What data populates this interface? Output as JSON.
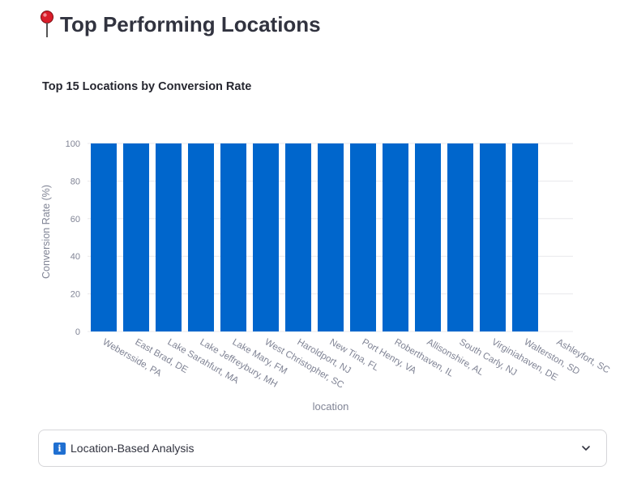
{
  "header": {
    "title": "Top Performing Locations",
    "icon": "pushpin-icon"
  },
  "expander": {
    "label": "Location-Based Analysis",
    "icon": "information-icon"
  },
  "colors": {
    "bar": "#0066cc",
    "grid": "#e8e8ec",
    "tick_text": "#808495"
  },
  "chart_data": {
    "type": "bar",
    "title": "Top 15 Locations by Conversion Rate",
    "xlabel": "location",
    "ylabel": "Conversion Rate (%)",
    "ylim": [
      0,
      100
    ],
    "yticks": [
      0,
      20,
      40,
      60,
      80,
      100
    ],
    "categories": [
      "Webersside, PA",
      "East Brad, DE",
      "Lake Sarahfurt, MA",
      "Lake Jeffreybury, MH",
      "Lake Mary, FM",
      "West Christopher, SC",
      "Haroldport, NJ",
      "New Tina, FL",
      "Port Henry, VA",
      "Roberthaven, IL",
      "Allisonshire, AL",
      "South Carly, NJ",
      "Virginiahaven, DE",
      "Walterston, SD",
      "Ashleyfort, SC"
    ],
    "values": [
      100,
      100,
      100,
      100,
      100,
      100,
      100,
      100,
      100,
      100,
      100,
      100,
      100,
      100,
      0
    ],
    "grid": true,
    "legend": "none"
  }
}
